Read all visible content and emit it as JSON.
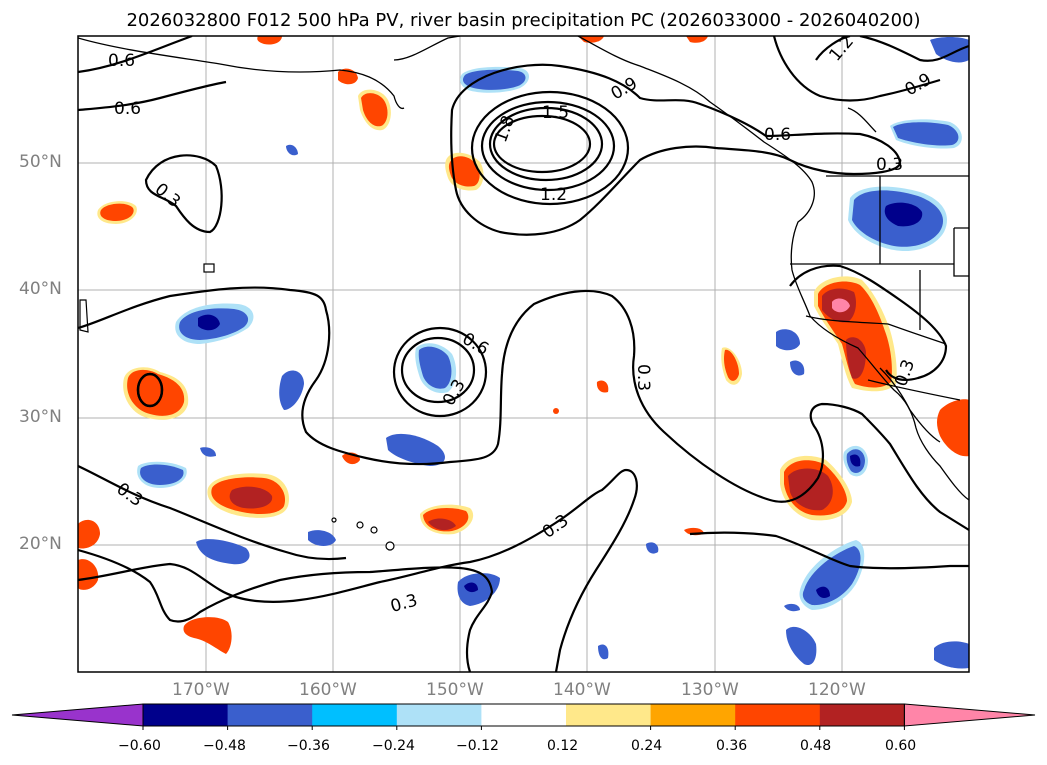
{
  "title": "2026032800 F012 500 hPa PV, river basin precipitation PC (2026033000 - 2026040200)",
  "lat_labels": [
    "50°N",
    "40°N",
    "30°N",
    "20°N"
  ],
  "lon_labels": [
    "170°W",
    "160°W",
    "150°W",
    "140°W",
    "130°W",
    "120°W"
  ],
  "contour_labels": {
    "pv_06_nw": "0.6",
    "pv_06_w": "0.6",
    "pv_03_w": "0.3",
    "pv_15": "1.5",
    "pv_18": "1.8",
    "pv_12": "1.2",
    "pv_09_ne": "0.9",
    "pv_06_e": "0.6",
    "pv_03_ne": "0.3",
    "pv_12_nne": "1.2",
    "pv_09_fne": "0.9",
    "pv_06_c": "0.6",
    "pv_03_c": "0.3",
    "pv_03_mid": "0.3",
    "pv_03_sw": "0.3",
    "pv_03_s": "0.3",
    "pv_03_se": "0.3",
    "pv_03_cal": "0.3"
  },
  "colorbar": {
    "ticks": [
      "−0.60",
      "−0.48",
      "−0.36",
      "−0.24",
      "−0.12",
      "0.12",
      "0.24",
      "0.36",
      "0.48",
      "0.60"
    ],
    "colors": [
      "#9933cc",
      "#00008b",
      "#3a5fcd",
      "#00bfff",
      "#aee1f7",
      "#ffffff",
      "#ffe88a",
      "#ffa500",
      "#ff4500",
      "#b22222",
      "#ff85a8"
    ]
  }
}
